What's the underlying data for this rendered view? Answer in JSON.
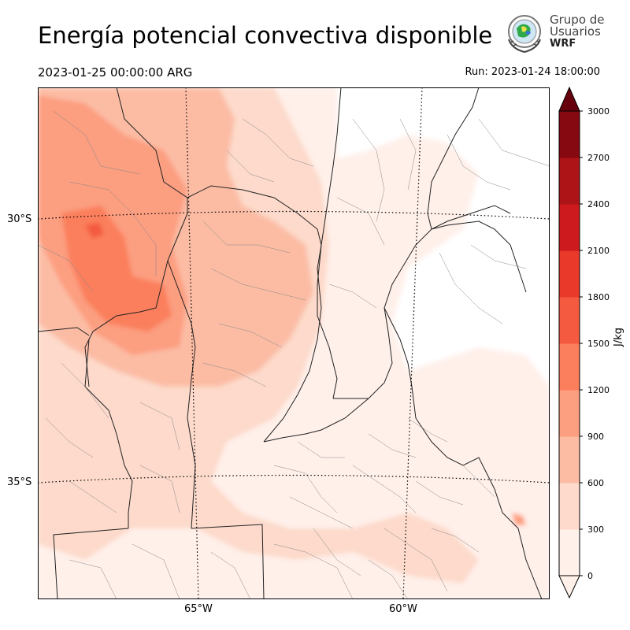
{
  "header": {
    "title": "Energía potencial convectiva disponible",
    "valid_time": "2023-01-25 00:00:00 ARG",
    "run_time": "Run: 2023-01-24 18:00:00"
  },
  "logo": {
    "line1": "Grupo de",
    "line2": "Usuarios",
    "line3": "WRF"
  },
  "map": {
    "lat_labels": [
      "30°S",
      "35°S"
    ],
    "lon_labels": [
      "65°W",
      "60°W"
    ]
  },
  "colorbar": {
    "label": "J/kg",
    "ticks": [
      "0",
      "300",
      "600",
      "900",
      "1200",
      "1500",
      "1800",
      "2100",
      "2400",
      "2700",
      "3000"
    ],
    "colors": [
      "#fff0ea",
      "#fddacb",
      "#fcbca4",
      "#fc9e80",
      "#fb7f5c",
      "#f45a40",
      "#e8392b",
      "#cc1a1e",
      "#ac1418",
      "#860811"
    ],
    "over_color": "#67000d"
  },
  "chart_data": {
    "type": "heatmap",
    "variable": "CAPE",
    "units": "J/kg",
    "levels": [
      0,
      300,
      600,
      900,
      1200,
      1500,
      1800,
      2100,
      2400,
      2700,
      3000
    ],
    "extend": "both"
  }
}
